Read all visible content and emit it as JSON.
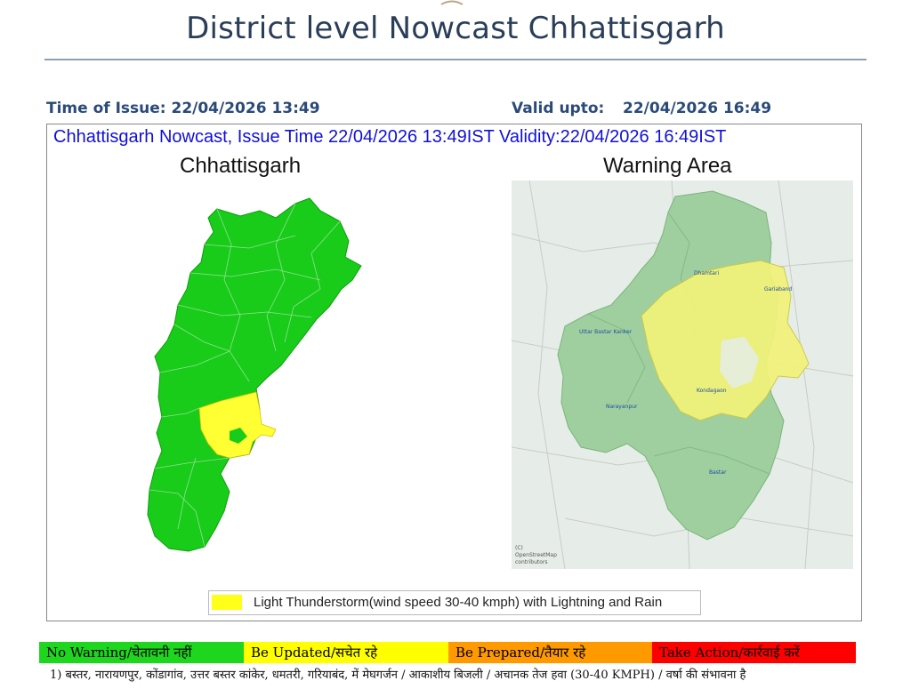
{
  "header": {
    "title": "District level Nowcast Chhattisgarh",
    "time_of_issue_label": "Time of Issue: 22/04/2026 13:49",
    "valid_upto_label": "Valid upto:",
    "valid_upto_value": "22/04/2026 16:49"
  },
  "panel": {
    "banner": "Chhattisgarh Nowcast, Issue Time 22/04/2026 13:49IST  Validity:22/04/2026 16:49IST",
    "left_map_title": "Chhattisgarh",
    "right_map_title": "Warning Area",
    "legend_text": "Light Thunderstorm(wind speed 30-40 kmph) with Lightning and Rain",
    "legend_color": "#ffff1a",
    "no_warning_color": "#19cc19",
    "osm_credit_line1": "(C)",
    "osm_credit_line2": "OpenStreetMap",
    "osm_credit_line3": "contributors",
    "basemap_labels": {
      "dhamtari": "Dhamtari",
      "gariaband": "Gariaband",
      "uttar_bastar_kanker": "Uttar Bastar Kanker",
      "kondagaon": "Kondagaon",
      "narayanpur": "Narayanpur",
      "bastar": "Bastar"
    }
  },
  "warning_levels": [
    {
      "label": "No Warning/चेतावनी नहीं",
      "color": "#1fd61f"
    },
    {
      "label": "Be Updated/सचेत रहे",
      "color": "#ffff00"
    },
    {
      "label": "Be Prepared/तैयार रहे",
      "color": "#ff9900"
    },
    {
      "label": "Take Action/कार्रवाई करें",
      "color": "#ff0000"
    }
  ],
  "footnote": "1) बस्तर, नारायणपुर, कोंडागांव, उत्तर बस्तर कांकेर, धमतरी, गरियाबंद,  में मेघगर्जन / आकाशीय बिजली / अचानक तेज हवा (30-40 KMPH) / वर्षा की संभावना  है"
}
